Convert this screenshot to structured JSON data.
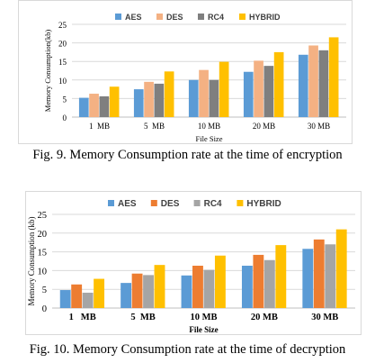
{
  "charts": [
    {
      "caption": "Fig. 9. Memory Consumption rate at the time of encryption",
      "chart_data": {
        "type": "bar",
        "categories": [
          "1  MB",
          "5  MB",
          "10 MB",
          "20 MB",
          "30 MB"
        ],
        "series": [
          {
            "name": "AES",
            "color": "#5b9bd5",
            "values": [
              5.2,
              7.5,
              10.0,
              12.2,
              16.8
            ]
          },
          {
            "name": "DES",
            "color": "#f4b183",
            "values": [
              6.3,
              9.5,
              12.7,
              15.2,
              19.3
            ]
          },
          {
            "name": "RC4",
            "color": "#7f7f7f",
            "values": [
              5.6,
              9.0,
              10.0,
              13.8,
              18.0
            ]
          },
          {
            "name": "HYBRID",
            "color": "#ffc000",
            "values": [
              8.2,
              12.3,
              14.9,
              17.5,
              21.5
            ]
          }
        ],
        "ylabel": "Memory Consumption(kb)",
        "xlabel": "File Size",
        "ylim": [
          0,
          25
        ],
        "yticks": [
          0,
          5,
          10,
          15,
          20,
          25
        ],
        "grid": true,
        "legend": "top"
      }
    },
    {
      "caption": "Fig. 10. Memory Consumption rate at the time of decryption",
      "chart_data": {
        "type": "bar",
        "categories": [
          "1   MB",
          "5  MB",
          "10 MB",
          "20 MB",
          "30 MB"
        ],
        "series": [
          {
            "name": "AES",
            "color": "#5b9bd5",
            "values": [
              4.8,
              6.7,
              8.7,
              11.3,
              15.8
            ]
          },
          {
            "name": "DES",
            "color": "#ed7d31",
            "values": [
              6.3,
              9.2,
              11.3,
              14.2,
              18.3
            ]
          },
          {
            "name": "RC4",
            "color": "#a5a5a5",
            "values": [
              4.1,
              8.8,
              10.2,
              12.8,
              17.0
            ]
          },
          {
            "name": "HYBRID",
            "color": "#ffc000",
            "values": [
              7.8,
              11.5,
              14.0,
              16.8,
              21.0
            ]
          }
        ],
        "ylabel": "Memory Consumption (kb)",
        "xlabel": "File Size",
        "ylim": [
          0,
          25
        ],
        "yticks": [
          0,
          5,
          10,
          15,
          20,
          25
        ],
        "grid": true,
        "legend": "top"
      }
    }
  ]
}
